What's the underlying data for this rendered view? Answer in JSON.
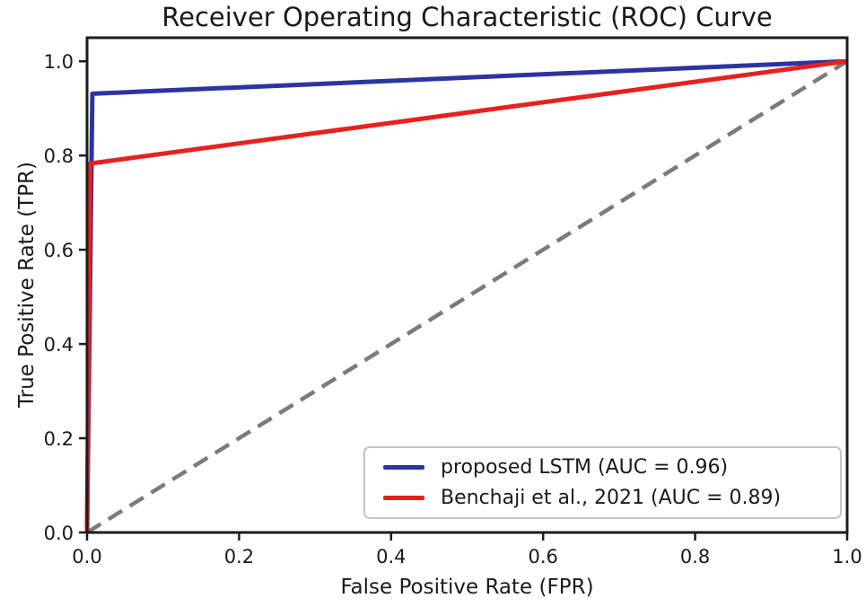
{
  "chart_data": {
    "type": "line",
    "title": "Receiver Operating Characteristic (ROC) Curve",
    "xlabel": "False Positive Rate (FPR)",
    "ylabel": "True Positive Rate (TPR)",
    "xlim": [
      0.0,
      1.0
    ],
    "ylim": [
      0.0,
      1.05
    ],
    "xticks": [
      0.0,
      0.2,
      0.4,
      0.6,
      0.8,
      1.0
    ],
    "yticks": [
      0.0,
      0.2,
      0.4,
      0.6,
      0.8,
      1.0
    ],
    "grid": false,
    "legend_position": "lower right",
    "axis_color": "#1c1c1c",
    "series": [
      {
        "name": "proposed LSTM (AUC = 0.96)",
        "auc": 0.96,
        "color": "#2b35a0",
        "style": "solid",
        "in_legend": true,
        "points": [
          [
            0.0,
            0.0
          ],
          [
            0.007,
            0.931
          ],
          [
            0.09,
            0.937
          ],
          [
            1.0,
            1.0
          ]
        ]
      },
      {
        "name": "Benchaji et al., 2021 (AUC = 0.89)",
        "auc": 0.89,
        "color": "#e8211f",
        "style": "solid",
        "in_legend": true,
        "points": [
          [
            0.0,
            0.0
          ],
          [
            0.004,
            0.783
          ],
          [
            1.0,
            1.0
          ]
        ]
      },
      {
        "name": "chance-diagonal",
        "color": "#7b7b7b",
        "style": "dashed",
        "in_legend": false,
        "points": [
          [
            0.0,
            0.0
          ],
          [
            1.0,
            1.0
          ]
        ]
      }
    ]
  }
}
